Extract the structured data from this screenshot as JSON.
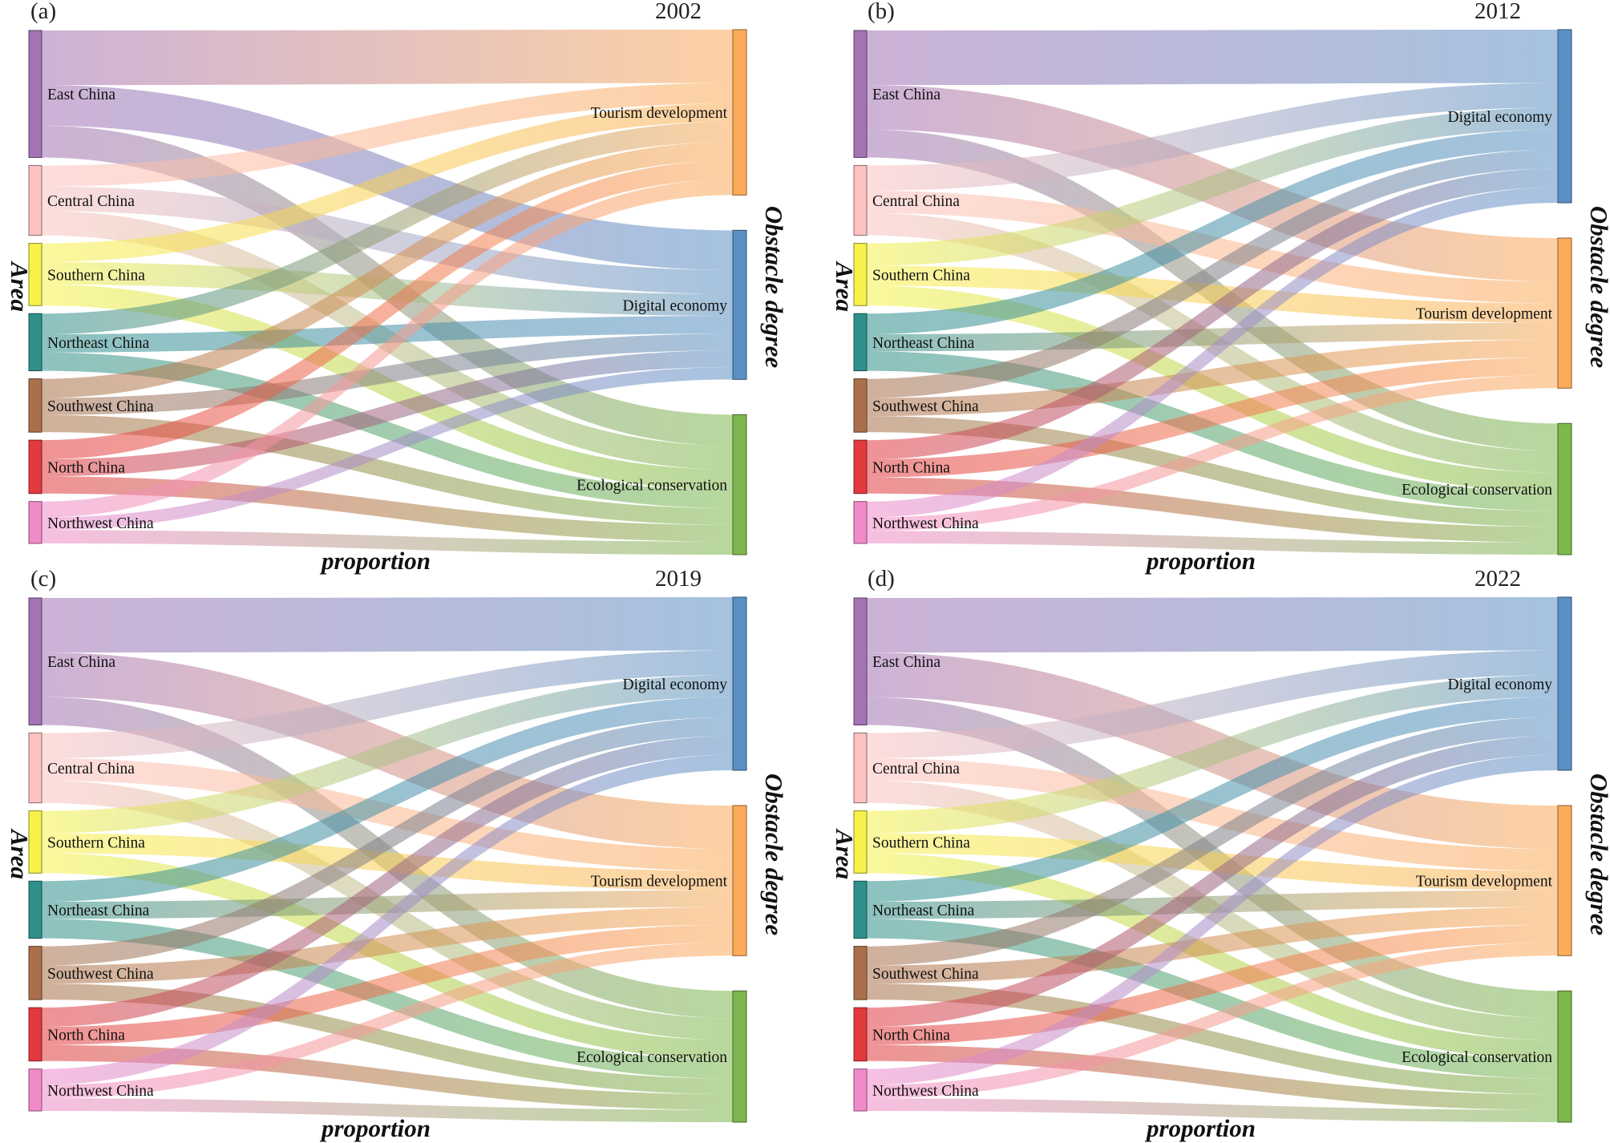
{
  "axis_titles": {
    "left": "Area",
    "right": "Obstacle degree",
    "bottom": "proportion"
  },
  "colors": {
    "East China": "#a373b4",
    "Central China": "#fbc2c0",
    "Southern China": "#f6f24a",
    "Northeast China": "#2f8f8b",
    "Southwest China": "#a9704b",
    "North China": "#e2393f",
    "Northwest China": "#f08ac8",
    "Tourism development": "#fbab5a",
    "Digital economy": "#5b90c4",
    "Ecological conservation": "#7db74d"
  },
  "chart_data": [
    {
      "type": "sankey",
      "panel": "(a)",
      "year": "2002",
      "sources": [
        "East China",
        "Central China",
        "Southern China",
        "Northeast China",
        "Southwest China",
        "North China",
        "Northwest China"
      ],
      "targets": [
        "Tourism development",
        "Digital economy",
        "Ecological conservation"
      ],
      "flows": [
        [
          0.43,
          0.32,
          0.25
        ],
        [
          0.3,
          0.35,
          0.35
        ],
        [
          0.3,
          0.36,
          0.34
        ],
        [
          0.36,
          0.32,
          0.32
        ],
        [
          0.36,
          0.32,
          0.32
        ],
        [
          0.36,
          0.32,
          0.32
        ],
        [
          0.38,
          0.3,
          0.32
        ]
      ],
      "source_weights": [
        1.0,
        0.55,
        0.49,
        0.45,
        0.42,
        0.42,
        0.33
      ]
    },
    {
      "type": "sankey",
      "panel": "(b)",
      "year": "2012",
      "sources": [
        "East China",
        "Central China",
        "Southern China",
        "Northeast China",
        "Southwest China",
        "North China",
        "Northwest China"
      ],
      "targets": [
        "Digital economy",
        "Tourism development",
        "Ecological conservation"
      ],
      "flows": [
        [
          0.43,
          0.35,
          0.22
        ],
        [
          0.36,
          0.32,
          0.32
        ],
        [
          0.36,
          0.32,
          0.32
        ],
        [
          0.36,
          0.3,
          0.34
        ],
        [
          0.36,
          0.34,
          0.3
        ],
        [
          0.36,
          0.34,
          0.3
        ],
        [
          0.38,
          0.32,
          0.3
        ]
      ],
      "source_weights": [
        1.0,
        0.55,
        0.49,
        0.45,
        0.42,
        0.42,
        0.33
      ]
    },
    {
      "type": "sankey",
      "panel": "(c)",
      "year": "2019",
      "sources": [
        "East China",
        "Central China",
        "Southern China",
        "Northeast China",
        "Southwest China",
        "North China",
        "Northwest China"
      ],
      "targets": [
        "Digital economy",
        "Tourism development",
        "Ecological conservation"
      ],
      "flows": [
        [
          0.43,
          0.35,
          0.22
        ],
        [
          0.36,
          0.32,
          0.32
        ],
        [
          0.36,
          0.32,
          0.32
        ],
        [
          0.36,
          0.3,
          0.34
        ],
        [
          0.36,
          0.34,
          0.3
        ],
        [
          0.36,
          0.34,
          0.3
        ],
        [
          0.38,
          0.32,
          0.3
        ]
      ],
      "source_weights": [
        1.0,
        0.55,
        0.49,
        0.45,
        0.42,
        0.42,
        0.33
      ]
    },
    {
      "type": "sankey",
      "panel": "(d)",
      "year": "2022",
      "sources": [
        "East China",
        "Central China",
        "Southern China",
        "Northeast China",
        "Southwest China",
        "North China",
        "Northwest China"
      ],
      "targets": [
        "Digital economy",
        "Tourism development",
        "Ecological conservation"
      ],
      "flows": [
        [
          0.43,
          0.35,
          0.22
        ],
        [
          0.36,
          0.32,
          0.32
        ],
        [
          0.36,
          0.32,
          0.32
        ],
        [
          0.36,
          0.3,
          0.34
        ],
        [
          0.36,
          0.34,
          0.3
        ],
        [
          0.36,
          0.34,
          0.3
        ],
        [
          0.38,
          0.32,
          0.3
        ]
      ],
      "source_weights": [
        1.0,
        0.55,
        0.49,
        0.45,
        0.42,
        0.42,
        0.33
      ]
    }
  ]
}
